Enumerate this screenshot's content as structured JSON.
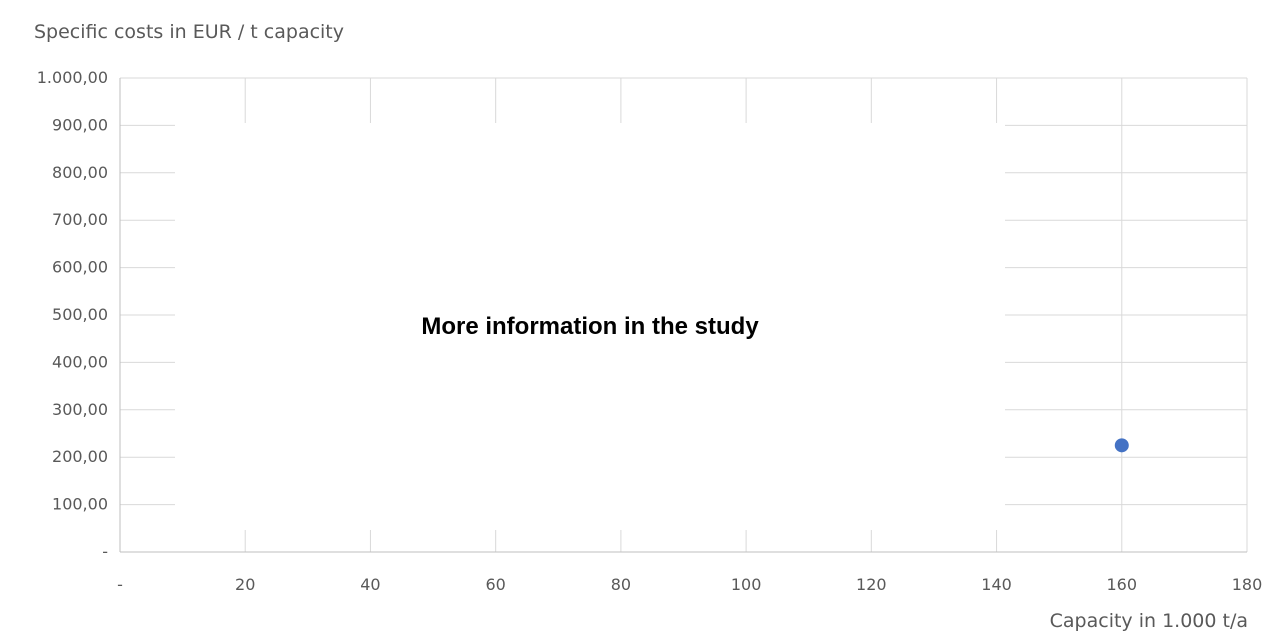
{
  "chart_data": {
    "type": "scatter",
    "ylabel": "Specific costs in EUR / t capacity",
    "xlabel": "Capacity in 1.000 t/a",
    "annotation": "More information in the study",
    "xlim": [
      0,
      180
    ],
    "ylim": [
      0,
      1000
    ],
    "x_ticks": [
      0,
      20,
      40,
      60,
      80,
      100,
      120,
      140,
      160,
      180
    ],
    "x_tick_labels": [
      "-",
      "20",
      "40",
      "60",
      "80",
      "100",
      "120",
      "140",
      "160",
      "180"
    ],
    "y_ticks": [
      0,
      100,
      200,
      300,
      400,
      500,
      600,
      700,
      800,
      900,
      1000
    ],
    "y_tick_labels": [
      "-",
      "100,00",
      "200,00",
      "300,00",
      "400,00",
      "500,00",
      "600,00",
      "700,00",
      "800,00",
      "900,00",
      "1.000,00"
    ],
    "grid": true,
    "legend": "none",
    "series": [
      {
        "color": "#4472C4",
        "points": [
          {
            "x": 160,
            "y": 225
          }
        ]
      }
    ]
  }
}
